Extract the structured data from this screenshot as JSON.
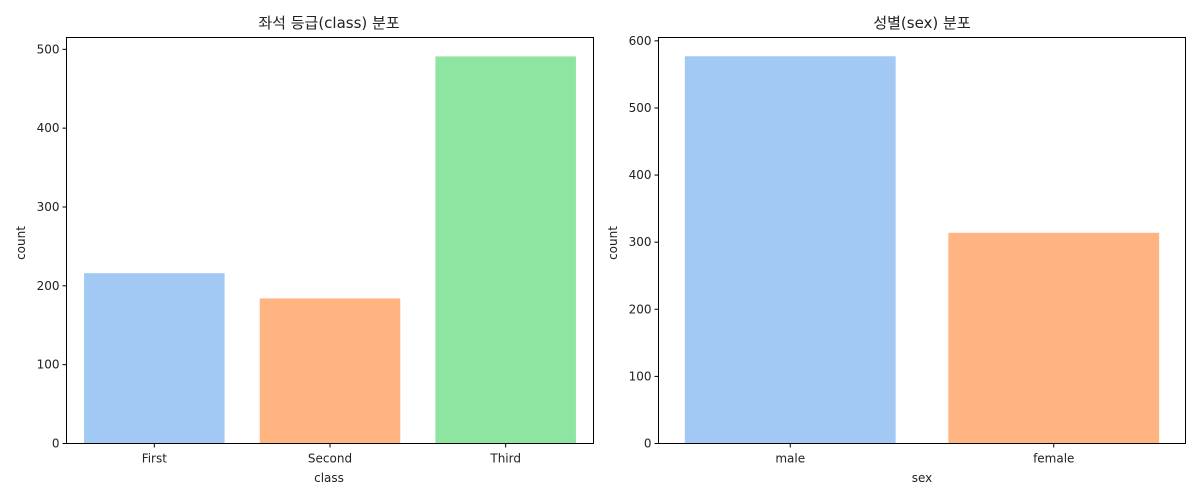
{
  "chart_data": [
    {
      "type": "bar",
      "title": "좌석 등급(class) 분포",
      "xlabel": "class",
      "ylabel": "count",
      "categories": [
        "First",
        "Second",
        "Third"
      ],
      "values": [
        216,
        184,
        491
      ],
      "colors": [
        "#a1c9f4",
        "#ffb482",
        "#8de5a1"
      ],
      "ylim": [
        0,
        515
      ],
      "yticks": [
        0,
        100,
        200,
        300,
        400,
        500
      ],
      "grid": false
    },
    {
      "type": "bar",
      "title": "성별(sex) 분포",
      "xlabel": "sex",
      "ylabel": "count",
      "categories": [
        "male",
        "female"
      ],
      "values": [
        577,
        314
      ],
      "colors": [
        "#a1c9f4",
        "#ffb482"
      ],
      "ylim": [
        0,
        605
      ],
      "yticks": [
        0,
        100,
        200,
        300,
        400,
        500,
        600
      ],
      "grid": false
    }
  ]
}
